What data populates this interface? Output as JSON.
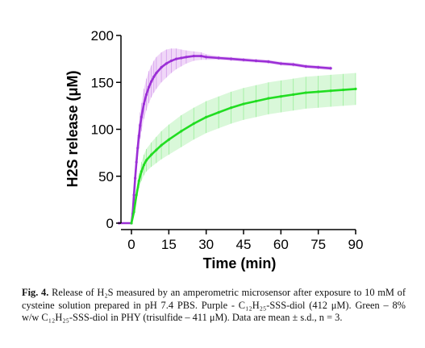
{
  "chart_data": {
    "type": "line",
    "title": "",
    "xlabel": "Time (min)",
    "ylabel": "H2S release (μM)",
    "xlim": [
      -5,
      90
    ],
    "ylim": [
      0,
      200
    ],
    "xticks": [
      0,
      15,
      30,
      45,
      60,
      75,
      90
    ],
    "yticks": [
      0,
      50,
      100,
      150,
      200
    ],
    "grid": false,
    "legend": "none",
    "series": [
      {
        "color": "#9b2fd6",
        "band_color": "#e3b6f3",
        "error": "mean ± s.d.",
        "x": [
          -5,
          0,
          0.5,
          1,
          1.5,
          2,
          2.5,
          3,
          3.5,
          4,
          5,
          6,
          7,
          8,
          9,
          10,
          12,
          14,
          16,
          18,
          20,
          22,
          25,
          28,
          30,
          35,
          40,
          45,
          50,
          55,
          60,
          65,
          70,
          75,
          80
        ],
        "y": [
          0,
          0,
          10,
          30,
          48,
          65,
          80,
          93,
          104,
          113,
          127,
          137,
          145,
          151,
          156,
          160,
          166,
          170,
          173,
          175,
          176,
          177,
          178,
          178,
          177,
          176,
          175,
          174,
          173,
          172,
          170,
          169,
          167,
          166,
          165
        ],
        "error_sd": [
          0,
          0,
          3,
          6,
          8,
          10,
          12,
          13,
          14,
          15,
          16,
          17,
          17,
          17,
          17,
          17,
          16,
          15,
          13,
          11,
          9,
          7,
          5,
          4,
          3,
          2,
          2,
          2,
          2,
          2,
          2,
          2,
          2,
          2,
          2
        ]
      },
      {
        "color": "#22dd22",
        "band_color": "#b9f3b9",
        "error": "mean ± s.d.",
        "x": [
          0,
          1,
          2,
          3,
          4,
          5,
          6,
          8,
          10,
          12,
          15,
          20,
          25,
          30,
          35,
          40,
          45,
          50,
          55,
          60,
          65,
          70,
          75,
          80,
          85,
          90
        ],
        "y": [
          0,
          12,
          30,
          45,
          55,
          62,
          67,
          73,
          78,
          83,
          89,
          98,
          106,
          113,
          118,
          123,
          127,
          130,
          133,
          135,
          137,
          139,
          140,
          141,
          142,
          143
        ],
        "error_sd": [
          0,
          3,
          6,
          8,
          10,
          11,
          12,
          13,
          14,
          15,
          16,
          17,
          17,
          17,
          17,
          17,
          17,
          17,
          17,
          17,
          17,
          17,
          17,
          17,
          17,
          17
        ]
      }
    ]
  },
  "caption": {
    "label": "Fig. 4.",
    "text": "Release of H₂S measured by an amperometric microsensor after exposure to 10 mM of cysteine solution prepared in pH 7.4 PBS. Purple - C₁₂H₂₅-SSS-diol (412 μM). Green – 8% w/w C₁₂H₂₅-SSS-diol in PHY (trisulfide – 411 μM). Data are mean ± s.d., n = 3."
  }
}
